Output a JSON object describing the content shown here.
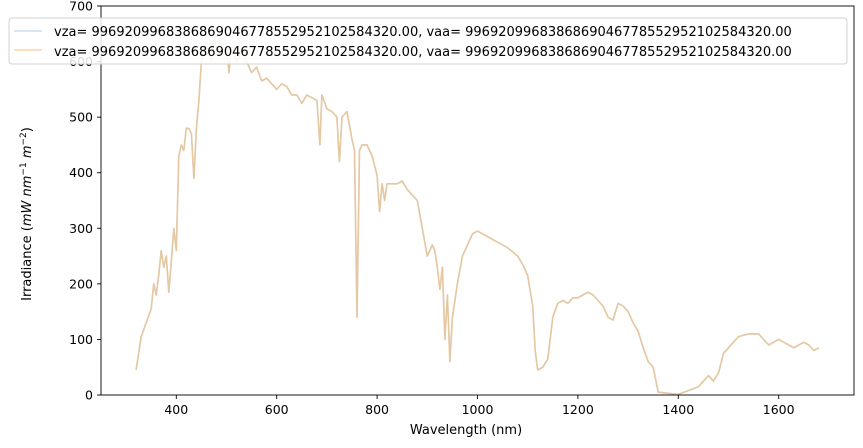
{
  "chart_data": {
    "type": "line",
    "title": "",
    "xlabel": "Wavelength (nm)",
    "ylabel_prefix": "Irradiance (",
    "ylabel_units": {
      "mW": "mW",
      "nm": "nm",
      "nm_exp": "−1",
      "m": "m",
      "m_exp": "−2"
    },
    "ylabel_suffix": ")",
    "xlim": [
      250,
      1750
    ],
    "ylim": [
      0,
      700
    ],
    "xticks": [
      400,
      600,
      800,
      1000,
      1200,
      1400,
      1600
    ],
    "yticks": [
      0,
      100,
      200,
      300,
      400,
      500,
      600,
      700
    ],
    "xtick_labels": [
      "400",
      "600",
      "800",
      "1000",
      "1200",
      "1400",
      "1600"
    ],
    "ytick_labels": [
      "0",
      "100",
      "200",
      "300",
      "400",
      "500",
      "600",
      "700"
    ],
    "grid": false,
    "legend_position": "top",
    "series": [
      {
        "name": "vza= 996920996838686904677855295210258432​0.00, vaa= 996920996838686904677855295210258432​0.00",
        "color": "#aac8dc",
        "alpha": 0.6
      },
      {
        "name": "vza= 996920996838686904677855295210258432​0.00, vaa= 996920996838686904677855295210258432​0.00",
        "color": "#f5b870",
        "alpha": 0.6
      }
    ],
    "x": [
      320,
      330,
      340,
      350,
      355,
      360,
      365,
      370,
      375,
      380,
      385,
      390,
      395,
      400,
      405,
      410,
      415,
      420,
      425,
      430,
      435,
      440,
      445,
      450,
      455,
      460,
      465,
      470,
      475,
      480,
      485,
      490,
      495,
      500,
      505,
      510,
      515,
      520,
      530,
      540,
      550,
      560,
      570,
      580,
      590,
      600,
      610,
      620,
      630,
      640,
      650,
      660,
      670,
      680,
      686,
      690,
      700,
      710,
      720,
      725,
      730,
      740,
      750,
      755,
      760,
      765,
      770,
      780,
      790,
      800,
      805,
      810,
      815,
      820,
      830,
      840,
      850,
      860,
      870,
      880,
      890,
      900,
      905,
      910,
      915,
      920,
      925,
      930,
      935,
      940,
      945,
      950,
      960,
      970,
      980,
      990,
      1000,
      1010,
      1020,
      1040,
      1060,
      1080,
      1090,
      1100,
      1110,
      1115,
      1120,
      1130,
      1140,
      1150,
      1160,
      1170,
      1180,
      1190,
      1200,
      1210,
      1220,
      1230,
      1240,
      1250,
      1260,
      1270,
      1280,
      1290,
      1300,
      1310,
      1320,
      1330,
      1340,
      1350,
      1360,
      1380,
      1400,
      1420,
      1440,
      1460,
      1470,
      1480,
      1490,
      1500,
      1510,
      1520,
      1540,
      1560,
      1570,
      1580,
      1590,
      1600,
      1610,
      1620,
      1630,
      1640,
      1650,
      1660,
      1670,
      1680
    ],
    "y": [
      45,
      105,
      130,
      155,
      200,
      180,
      215,
      260,
      230,
      250,
      185,
      240,
      300,
      260,
      430,
      450,
      440,
      480,
      480,
      470,
      390,
      480,
      530,
      600,
      620,
      630,
      615,
      600,
      640,
      625,
      615,
      640,
      640,
      625,
      580,
      630,
      615,
      600,
      620,
      600,
      580,
      590,
      565,
      570,
      560,
      550,
      560,
      555,
      540,
      540,
      525,
      540,
      535,
      530,
      450,
      540,
      515,
      510,
      500,
      420,
      500,
      510,
      460,
      440,
      140,
      440,
      450,
      450,
      430,
      395,
      330,
      380,
      350,
      380,
      380,
      380,
      385,
      370,
      360,
      350,
      300,
      250,
      260,
      270,
      260,
      230,
      190,
      230,
      100,
      180,
      60,
      140,
      200,
      250,
      270,
      290,
      295,
      290,
      285,
      275,
      265,
      250,
      235,
      215,
      160,
      80,
      45,
      50,
      65,
      140,
      165,
      170,
      165,
      175,
      175,
      180,
      185,
      180,
      170,
      160,
      140,
      135,
      165,
      160,
      150,
      130,
      115,
      85,
      60,
      50,
      5,
      3,
      1,
      8,
      15,
      35,
      25,
      40,
      75,
      85,
      95,
      105,
      110,
      110,
      100,
      90,
      95,
      100,
      95,
      90,
      85,
      90,
      95,
      90,
      80,
      85
    ]
  }
}
